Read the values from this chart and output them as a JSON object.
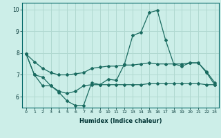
{
  "xlabel": "Humidex (Indice chaleur)",
  "background_color": "#cceee8",
  "grid_color": "#b0d8d0",
  "line_color": "#1a6b60",
  "xlim": [
    -0.5,
    23.5
  ],
  "ylim": [
    5.5,
    10.3
  ],
  "yticks": [
    6,
    7,
    8,
    9,
    10
  ],
  "xticks": [
    0,
    1,
    2,
    3,
    4,
    5,
    6,
    7,
    8,
    9,
    10,
    11,
    12,
    13,
    14,
    15,
    16,
    17,
    18,
    19,
    20,
    21,
    22,
    23
  ],
  "line1_x": [
    0,
    1,
    2,
    3,
    4,
    5,
    6,
    7,
    8,
    9,
    10,
    11,
    12,
    13,
    14,
    15,
    16,
    17,
    18,
    19,
    20,
    21,
    22,
    23
  ],
  "line1_y": [
    7.95,
    7.6,
    7.3,
    7.1,
    7.0,
    7.0,
    7.05,
    7.1,
    7.3,
    7.35,
    7.4,
    7.4,
    7.45,
    7.45,
    7.5,
    7.55,
    7.5,
    7.5,
    7.5,
    7.5,
    7.55,
    7.55,
    7.15,
    6.65
  ],
  "line2_x": [
    0,
    1,
    2,
    3,
    4,
    5,
    6,
    7,
    8,
    9,
    10,
    11,
    12,
    13,
    14,
    15,
    16,
    17,
    18,
    19,
    20,
    21,
    22,
    23
  ],
  "line2_y": [
    7.95,
    7.0,
    6.9,
    6.5,
    6.25,
    6.15,
    6.25,
    6.5,
    6.55,
    6.55,
    6.55,
    6.55,
    6.55,
    6.55,
    6.55,
    6.6,
    6.6,
    6.6,
    6.6,
    6.6,
    6.6,
    6.6,
    6.55,
    6.55
  ],
  "line3_x": [
    0,
    1,
    2,
    3,
    4,
    5,
    6,
    7,
    8,
    9,
    10,
    11,
    12,
    13,
    14,
    15,
    16,
    17,
    18,
    19,
    20,
    21,
    22,
    23
  ],
  "line3_y": [
    7.95,
    7.0,
    6.5,
    6.5,
    6.2,
    5.8,
    5.6,
    5.6,
    6.65,
    6.55,
    6.8,
    6.75,
    7.5,
    8.8,
    8.95,
    9.85,
    9.95,
    8.6,
    7.5,
    7.4,
    7.55,
    7.55,
    7.1,
    6.55
  ]
}
